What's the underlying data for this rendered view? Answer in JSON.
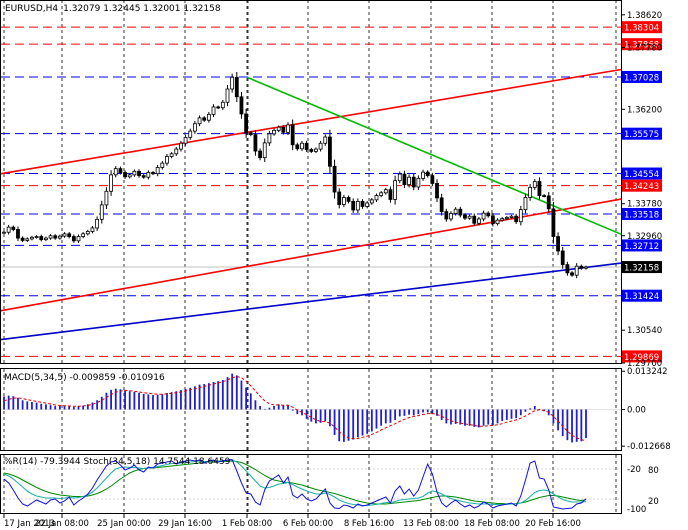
{
  "header": {
    "symbol": "EURUSD,H4",
    "ohlc": "1.32079 1.32445 1.32001 1.32158"
  },
  "chart_data": {
    "type": "candlestick",
    "x_ticks": [
      "17 Jan 2013",
      "22 Jan 08:00",
      "25 Jan 00:00",
      "29 Jan 16:00",
      "1 Feb 08:00",
      "6 Feb 00:00",
      "8 Feb 16:00",
      "13 Feb 08:00",
      "18 Feb 08:00",
      "20 Feb 16:00"
    ],
    "main": {
      "y_ticks": [
        "1.38620",
        "1.37780",
        "1.36200",
        "1.33780",
        "1.32960",
        "1.30540",
        "1.29700"
      ],
      "ylim": [
        1.297,
        1.39
      ],
      "current_price": "1.32158",
      "levels": [
        {
          "value": "1.38304",
          "color": "#ff0000"
        },
        {
          "value": "1.37868",
          "color": "#ff0000"
        },
        {
          "value": "1.37028",
          "color": "#0000ff"
        },
        {
          "value": "1.35575",
          "color": "#0000ff"
        },
        {
          "value": "1.34554",
          "color": "#0000ff"
        },
        {
          "value": "1.34243",
          "color": "#ff0000"
        },
        {
          "value": "1.33518",
          "color": "#0000ff"
        },
        {
          "value": "1.32712",
          "color": "#0000ff"
        },
        {
          "value": "1.31424",
          "color": "#0000ff"
        },
        {
          "value": "1.29869",
          "color": "#ff0000"
        }
      ],
      "closes": [
        1.3305,
        1.3318,
        1.3312,
        1.329,
        1.3284,
        1.3288,
        1.3292,
        1.3294,
        1.3286,
        1.329,
        1.3296,
        1.329,
        1.3295,
        1.3301,
        1.3294,
        1.3283,
        1.3294,
        1.3301,
        1.3307,
        1.3316,
        1.3338,
        1.3375,
        1.341,
        1.3452,
        1.3468,
        1.3458,
        1.3447,
        1.3452,
        1.3461,
        1.345,
        1.3446,
        1.3458,
        1.3455,
        1.3471,
        1.3482,
        1.3499,
        1.3506,
        1.3518,
        1.3533,
        1.3548,
        1.3564,
        1.3583,
        1.3598,
        1.3592,
        1.3607,
        1.3626,
        1.3624,
        1.3638,
        1.3672,
        1.3702,
        1.3652,
        1.3608,
        1.356,
        1.3555,
        1.3513,
        1.3496,
        1.3534,
        1.3557,
        1.3566,
        1.3574,
        1.3561,
        1.358,
        1.3529,
        1.3519,
        1.3533,
        1.3517,
        1.3512,
        1.3518,
        1.3533,
        1.3549,
        1.3474,
        1.3408,
        1.3376,
        1.3394,
        1.3384,
        1.3362,
        1.3384,
        1.3371,
        1.338,
        1.3388,
        1.3399,
        1.3406,
        1.3414,
        1.3389,
        1.3437,
        1.3454,
        1.3427,
        1.3446,
        1.3421,
        1.3443,
        1.3459,
        1.345,
        1.343,
        1.3393,
        1.3358,
        1.3339,
        1.3353,
        1.3364,
        1.3349,
        1.3341,
        1.3346,
        1.3328,
        1.3339,
        1.3354,
        1.3347,
        1.3327,
        1.3336,
        1.334,
        1.3343,
        1.3346,
        1.3332,
        1.3363,
        1.3394,
        1.342,
        1.3435,
        1.3399,
        1.3398,
        1.3365,
        1.3294,
        1.3257,
        1.3222,
        1.3201,
        1.3195,
        1.3218,
        1.3213,
        1.3216
      ],
      "trend_lines": [
        {
          "color": "#ff0000",
          "points": [
            [
              "17 Jan 2013",
              1.3455
            ],
            [
              "end",
              1.3722
            ]
          ]
        },
        {
          "color": "#ff0000",
          "points": [
            [
              "17 Jan 2013",
              1.3104
            ],
            [
              "end",
              1.339
            ]
          ]
        },
        {
          "color": "#0000cc",
          "points": [
            [
              "17 Jan 2013",
              1.303
            ],
            [
              "end",
              1.3226
            ]
          ]
        },
        {
          "color": "#00bb00",
          "points": [
            [
              "1 Feb 08:00",
              1.3702
            ],
            [
              "end",
              1.33
            ]
          ]
        }
      ]
    },
    "macd": {
      "label": "MACD(5,34,5) -0.009859 -0.010916",
      "y_ticks": [
        "0.013242",
        "0.00",
        "-0.012668"
      ],
      "ylim": [
        -0.014,
        0.014
      ],
      "histogram": [
        0.0045,
        0.0048,
        0.0046,
        0.004,
        0.0032,
        0.0028,
        0.0026,
        0.0024,
        0.002,
        0.0018,
        0.0015,
        0.0012,
        0.0012,
        0.0013,
        0.0011,
        0.0009,
        0.0011,
        0.0014,
        0.0018,
        0.0024,
        0.0032,
        0.0044,
        0.0058,
        0.0068,
        0.0072,
        0.007,
        0.0066,
        0.0063,
        0.0061,
        0.0058,
        0.0054,
        0.0052,
        0.005,
        0.0051,
        0.0053,
        0.0057,
        0.006,
        0.0063,
        0.0067,
        0.0071,
        0.0075,
        0.008,
        0.0086,
        0.0088,
        0.0091,
        0.0095,
        0.0098,
        0.0102,
        0.0112,
        0.0124,
        0.0118,
        0.01,
        0.0076,
        0.0056,
        0.0032,
        0.0012,
        0.0002,
        0.0006,
        0.0012,
        0.0018,
        0.0014,
        0.0016,
        -0.0004,
        -0.0016,
        -0.002,
        -0.0032,
        -0.0042,
        -0.0048,
        -0.0046,
        -0.004,
        -0.0058,
        -0.0088,
        -0.011,
        -0.0112,
        -0.0108,
        -0.0104,
        -0.0096,
        -0.009,
        -0.0084,
        -0.0076,
        -0.0066,
        -0.0056,
        -0.0048,
        -0.0046,
        -0.0036,
        -0.0024,
        -0.0022,
        -0.0018,
        -0.002,
        -0.0016,
        -0.001,
        -0.001,
        -0.0014,
        -0.0022,
        -0.0036,
        -0.0048,
        -0.0052,
        -0.005,
        -0.0052,
        -0.0056,
        -0.0056,
        -0.006,
        -0.0062,
        -0.0056,
        -0.0052,
        -0.0054,
        -0.0048,
        -0.004,
        -0.0036,
        -0.0032,
        -0.003,
        -0.002,
        -0.0008,
        0.0004,
        0.0012,
        0.0002,
        -0.0006,
        -0.002,
        -0.0048,
        -0.0072,
        -0.0092,
        -0.0106,
        -0.0114,
        -0.0112,
        -0.011,
        -0.0099
      ],
      "signal": [
        0.003,
        0.0035,
        0.0039,
        0.004,
        0.0038,
        0.0034,
        0.0031,
        0.0028,
        0.0025,
        0.0022,
        0.0019,
        0.0016,
        0.0014,
        0.0013,
        0.0012,
        0.0011,
        0.0011,
        0.0012,
        0.0014,
        0.0018,
        0.0024,
        0.0032,
        0.0042,
        0.0052,
        0.006,
        0.0064,
        0.0066,
        0.0065,
        0.0063,
        0.0061,
        0.0058,
        0.0056,
        0.0054,
        0.0053,
        0.0053,
        0.0054,
        0.0056,
        0.0058,
        0.0061,
        0.0064,
        0.0068,
        0.0072,
        0.0076,
        0.008,
        0.0084,
        0.0088,
        0.0092,
        0.0096,
        0.0102,
        0.011,
        0.0114,
        0.011,
        0.0098,
        0.0082,
        0.0064,
        0.0046,
        0.003,
        0.002,
        0.0016,
        0.0016,
        0.0015,
        0.0015,
        0.0008,
        -0.0002,
        -0.001,
        -0.0018,
        -0.0027,
        -0.0036,
        -0.0041,
        -0.0042,
        -0.0047,
        -0.006,
        -0.0077,
        -0.009,
        -0.0098,
        -0.0101,
        -0.01,
        -0.0096,
        -0.0092,
        -0.0086,
        -0.0079,
        -0.0071,
        -0.0063,
        -0.0056,
        -0.0049,
        -0.0041,
        -0.0034,
        -0.0028,
        -0.0024,
        -0.0021,
        -0.0017,
        -0.0014,
        -0.0014,
        -0.0017,
        -0.0023,
        -0.0032,
        -0.0039,
        -0.0044,
        -0.0047,
        -0.005,
        -0.0052,
        -0.0055,
        -0.0058,
        -0.0058,
        -0.0056,
        -0.0055,
        -0.0053,
        -0.0049,
        -0.0044,
        -0.004,
        -0.0036,
        -0.003,
        -0.0022,
        -0.0013,
        -0.0004,
        -0.0001,
        -0.0003,
        -0.001,
        -0.0024,
        -0.004,
        -0.0058,
        -0.0075,
        -0.0089,
        -0.0098,
        -0.0104,
        -0.0109
      ]
    },
    "oscillators": {
      "label": "%R(14) -79.3944 Stoch(34,5,18) 14.7544 18.6459",
      "y_ticks": [
        "-20",
        "-100"
      ],
      "y_ticks_right": [
        "80",
        "20"
      ],
      "ylim": [
        -100,
        0
      ],
      "wpr": [
        -40,
        -48,
        -62,
        -78,
        -90,
        -94,
        -88,
        -82,
        -86,
        -90,
        -82,
        -80,
        -88,
        -84,
        -76,
        -92,
        -84,
        -78,
        -70,
        -58,
        -42,
        -28,
        -14,
        -6,
        -4,
        -12,
        -22,
        -18,
        -12,
        -22,
        -26,
        -16,
        -18,
        -10,
        -8,
        -6,
        -4,
        -10,
        -6,
        -4,
        -2,
        -4,
        -2,
        -8,
        -4,
        -2,
        -6,
        -4,
        -2,
        -1,
        -24,
        -48,
        -68,
        -70,
        -86,
        -92,
        -62,
        -44,
        -38,
        -32,
        -48,
        -36,
        -72,
        -78,
        -70,
        -80,
        -84,
        -80,
        -70,
        -60,
        -88,
        -98,
        -99,
        -92,
        -94,
        -98,
        -90,
        -94,
        -92,
        -88,
        -84,
        -80,
        -76,
        -88,
        -64,
        -54,
        -70,
        -60,
        -74,
        -62,
        -36,
        -10,
        -30,
        -66,
        -88,
        -96,
        -88,
        -82,
        -90,
        -96,
        -92,
        -98,
        -94,
        -86,
        -90,
        -98,
        -94,
        -92,
        -90,
        -88,
        -94,
        -74,
        -42,
        -8,
        -4,
        -38,
        -40,
        -62,
        -96,
        -98,
        -100,
        -99,
        -98,
        -90,
        -88,
        -79.4
      ],
      "stoch": [
        -30,
        -34,
        -40,
        -48,
        -56,
        -64,
        -70,
        -74,
        -76,
        -78,
        -78,
        -78,
        -79,
        -78,
        -77,
        -78,
        -77,
        -75,
        -72,
        -66,
        -58,
        -48,
        -38,
        -28,
        -20,
        -17,
        -16,
        -17,
        -17,
        -18,
        -19,
        -18,
        -17,
        -15,
        -13,
        -11,
        -9,
        -9,
        -8,
        -7,
        -6,
        -5,
        -4,
        -5,
        -5,
        -4,
        -4,
        -4,
        -3,
        -2,
        -6,
        -14,
        -24,
        -34,
        -44,
        -54,
        -58,
        -57,
        -54,
        -50,
        -49,
        -47,
        -51,
        -56,
        -60,
        -64,
        -67,
        -70,
        -70,
        -68,
        -71,
        -76,
        -82,
        -86,
        -89,
        -91,
        -92,
        -93,
        -93,
        -92,
        -91,
        -89,
        -87,
        -87,
        -85,
        -82,
        -81,
        -80,
        -79,
        -78,
        -75,
        -68,
        -64,
        -66,
        -70,
        -75,
        -79,
        -82,
        -84,
        -86,
        -88,
        -89,
        -90,
        -90,
        -90,
        -91,
        -91,
        -91,
        -91,
        -90,
        -90,
        -88,
        -83,
        -75,
        -67,
        -63,
        -62,
        -64,
        -70,
        -76,
        -81,
        -84,
        -86,
        -86,
        -86,
        -85.2
      ],
      "signal": [
        -28,
        -30,
        -33,
        -37,
        -42,
        -47,
        -52,
        -57,
        -61,
        -65,
        -68,
        -70,
        -72,
        -73,
        -74,
        -75,
        -75,
        -75,
        -74,
        -72,
        -69,
        -65,
        -60,
        -54,
        -47,
        -40,
        -34,
        -28,
        -24,
        -21,
        -19,
        -18,
        -18,
        -17,
        -16,
        -15,
        -14,
        -13,
        -12,
        -11,
        -10,
        -9,
        -8,
        -7,
        -6,
        -6,
        -5,
        -5,
        -5,
        -4,
        -5,
        -7,
        -11,
        -16,
        -21,
        -27,
        -33,
        -38,
        -42,
        -44,
        -46,
        -47,
        -48,
        -50,
        -52,
        -55,
        -58,
        -61,
        -63,
        -65,
        -67,
        -69,
        -72,
        -75,
        -78,
        -81,
        -84,
        -86,
        -88,
        -89,
        -90,
        -90,
        -90,
        -89,
        -88,
        -87,
        -86,
        -85,
        -84,
        -83,
        -81,
        -79,
        -77,
        -75,
        -74,
        -74,
        -75,
        -76,
        -78,
        -80,
        -82,
        -84,
        -85,
        -86,
        -87,
        -88,
        -89,
        -89,
        -90,
        -90,
        -89,
        -88,
        -86,
        -83,
        -80,
        -77,
        -75,
        -73,
        -73,
        -74,
        -76,
        -78,
        -80,
        -82,
        -83,
        -81.4
      ]
    }
  }
}
